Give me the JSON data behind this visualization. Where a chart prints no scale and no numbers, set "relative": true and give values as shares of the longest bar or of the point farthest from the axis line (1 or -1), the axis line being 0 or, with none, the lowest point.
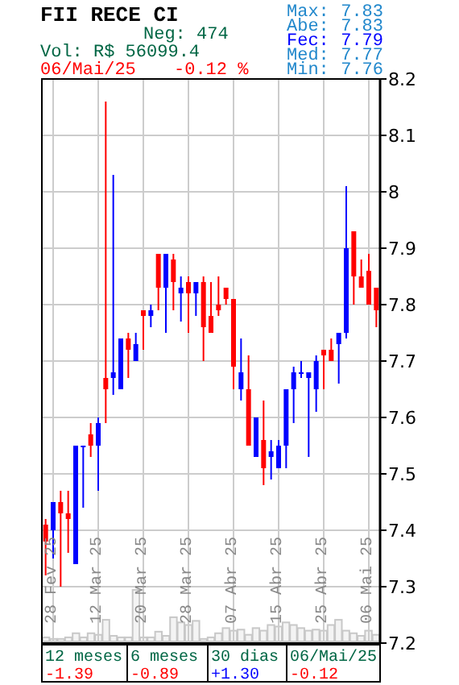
{
  "chart_data": [
    {
      "type": "candlestick",
      "title": "FII RECE CI",
      "annotations": [
        "Neg: 474",
        "Vol: R$ 56099.4",
        "06/Mai/25",
        "-0.12 %",
        "Max: 7.83",
        "Abe: 7.83",
        "Fec: 7.79",
        "Med: 7.77",
        "Min: 7.76",
        "12 meses",
        "-1.39",
        "6 meses",
        "-0.89",
        "30 dias",
        "+1.30",
        "06/Mai/25",
        "-0.12"
      ],
      "categories": [
        null,
        "28 Fev 25",
        null,
        null,
        null,
        null,
        null,
        "12 Mar 25",
        null,
        null,
        null,
        null,
        null,
        "20 Mar 25",
        null,
        null,
        null,
        null,
        null,
        "28 Mar 25",
        null,
        null,
        null,
        null,
        null,
        "07 Abr 25",
        null,
        null,
        null,
        null,
        null,
        "15 Abr 25",
        null,
        null,
        null,
        null,
        null,
        "25 Abr 25",
        null,
        null,
        null,
        null,
        null,
        "06 Mai 25",
        null
      ],
      "ohlc": [
        [
          7.41,
          7.42,
          7.32,
          7.38
        ],
        [
          7.4,
          7.45,
          7.35,
          7.45
        ],
        [
          7.45,
          7.47,
          7.3,
          7.43
        ],
        [
          7.43,
          7.47,
          7.36,
          7.42
        ],
        [
          7.34,
          7.55,
          7.34,
          7.55
        ],
        [
          7.55,
          7.55,
          7.44,
          7.55
        ],
        [
          7.57,
          7.59,
          7.53,
          7.55
        ],
        [
          7.55,
          7.6,
          7.47,
          7.59
        ],
        [
          7.67,
          8.16,
          7.59,
          7.65
        ],
        [
          7.67,
          8.03,
          7.64,
          7.68
        ],
        [
          7.65,
          7.74,
          7.65,
          7.74
        ],
        [
          7.74,
          7.75,
          7.67,
          7.72
        ],
        [
          7.7,
          7.75,
          7.7,
          7.73
        ],
        [
          7.79,
          7.79,
          7.72,
          7.78
        ],
        [
          7.78,
          7.8,
          7.76,
          7.79
        ],
        [
          7.89,
          7.89,
          7.79,
          7.83
        ],
        [
          7.83,
          7.89,
          7.75,
          7.89
        ],
        [
          7.88,
          7.89,
          7.79,
          7.84
        ],
        [
          7.82,
          7.85,
          7.77,
          7.83
        ],
        [
          7.84,
          7.85,
          7.75,
          7.82
        ],
        [
          7.82,
          7.84,
          7.78,
          7.84
        ],
        [
          7.84,
          7.85,
          7.7,
          7.76
        ],
        [
          7.78,
          7.84,
          7.75,
          7.75
        ],
        [
          7.8,
          7.85,
          7.78,
          7.79
        ],
        [
          7.83,
          7.83,
          7.8,
          7.81
        ],
        [
          7.81,
          7.81,
          7.65,
          7.69
        ],
        [
          7.65,
          7.74,
          7.63,
          7.68
        ],
        [
          7.65,
          7.71,
          7.55,
          7.55
        ],
        [
          7.53,
          7.6,
          7.53,
          7.6
        ],
        [
          7.56,
          7.63,
          7.48,
          7.51
        ],
        [
          7.53,
          7.56,
          7.49,
          7.54
        ],
        [
          7.51,
          7.56,
          7.51,
          7.55
        ],
        [
          7.55,
          7.65,
          7.51,
          7.65
        ],
        [
          7.65,
          7.69,
          7.59,
          7.68
        ],
        [
          7.68,
          7.7,
          7.67,
          7.68
        ],
        [
          7.67,
          7.68,
          7.53,
          7.68
        ],
        [
          7.65,
          7.71,
          7.61,
          7.7
        ],
        [
          7.72,
          7.72,
          7.65,
          7.71
        ],
        [
          7.72,
          7.74,
          7.7,
          7.7
        ],
        [
          7.73,
          7.75,
          7.66,
          7.75
        ],
        [
          7.75,
          8.01,
          7.74,
          7.9
        ],
        [
          7.93,
          7.93,
          7.8,
          7.85
        ],
        [
          7.85,
          7.88,
          7.83,
          7.83
        ],
        [
          7.86,
          7.89,
          7.8,
          7.8
        ],
        [
          7.83,
          7.83,
          7.76,
          7.79
        ]
      ],
      "colors": [
        "#ff0000",
        "#0000ff",
        "#ff0000",
        "#ff0000",
        "#0000ff",
        "#0000ff",
        "#ff0000",
        "#0000ff",
        "#ff0000",
        "#0000ff",
        "#0000ff",
        "#ff0000",
        "#0000ff",
        "#ff0000",
        "#0000ff",
        "#ff0000",
        "#0000ff",
        "#ff0000",
        "#0000ff",
        "#ff0000",
        "#0000ff",
        "#ff0000",
        "#ff0000",
        "#ff0000",
        "#ff0000",
        "#ff0000",
        "#0000ff",
        "#ff0000",
        "#0000ff",
        "#ff0000",
        "#0000ff",
        "#0000ff",
        "#0000ff",
        "#0000ff",
        "#0000ff",
        "#0000ff",
        "#0000ff",
        "#ff0000",
        "#ff0000",
        "#0000ff",
        "#0000ff",
        "#ff0000",
        "#ff0000",
        "#ff0000",
        "#ff0000"
      ],
      "ylim": [
        7.2,
        8.2
      ],
      "yticks": [
        7.2,
        7.3,
        7.4,
        7.5,
        7.6,
        7.7,
        7.8,
        7.9,
        8,
        8.1,
        8.2
      ],
      "grid": true
    },
    {
      "type": "bar",
      "relative": true,
      "color": "#c8c8c8",
      "categories": [
        null,
        null,
        null,
        null,
        null,
        null,
        null,
        null,
        null,
        null,
        null,
        null,
        null,
        null,
        null,
        null,
        null,
        null,
        null,
        null,
        null,
        null,
        null,
        null,
        null,
        null,
        null,
        null,
        null,
        null,
        null,
        null,
        null,
        null,
        null,
        null,
        null,
        null,
        null,
        null,
        null,
        null,
        null,
        null,
        null
      ],
      "values": [
        0.08,
        0.05,
        0.05,
        0.08,
        0.16,
        0.08,
        0.16,
        0.13,
        0.42,
        0.11,
        0.08,
        0.08,
        1,
        0.08,
        0.08,
        0.19,
        0.11,
        0.47,
        0.37,
        0.32,
        0.4,
        0.05,
        0.08,
        0.16,
        0.26,
        0.21,
        0.23,
        0.13,
        0.26,
        0.21,
        0.32,
        0.29,
        0.37,
        0.32,
        0.26,
        0.21,
        0.23,
        0.21,
        0.32,
        0.42,
        0.21,
        0.16,
        0.11,
        0.21,
        0.13
      ]
    }
  ]
}
